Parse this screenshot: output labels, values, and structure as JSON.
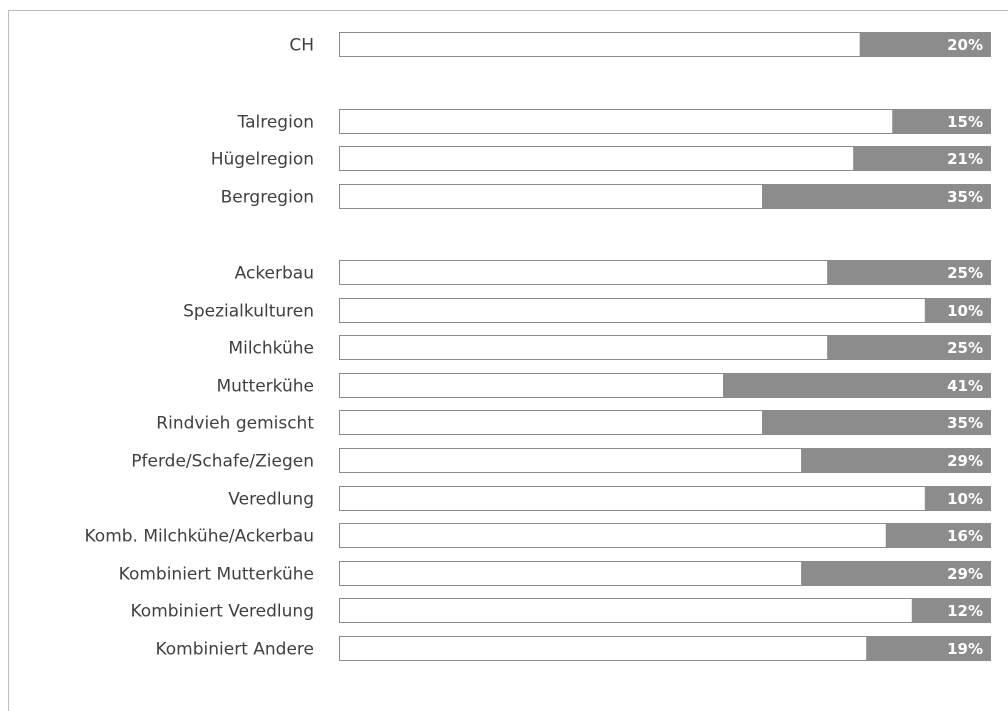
{
  "chart_data": {
    "type": "bar",
    "orientation": "horizontal",
    "stacked": true,
    "categories": [
      "CH",
      "Talregion",
      "Hügelregion",
      "Bergregion",
      "Ackerbau",
      "Spezialkulturen",
      "Milchkühe",
      "Mutterkühe",
      "Rindvieh gemischt",
      "Pferde/Schafe/Ziegen",
      "Veredlung",
      "Komb. Milchkühe/Ackerbau",
      "Kombiniert Mutterkühe",
      "Kombiniert Veredlung",
      "Kombiniert Andere"
    ],
    "groups": [
      [
        0
      ],
      [
        1,
        2,
        3
      ],
      [
        4,
        5,
        6,
        7,
        8,
        9,
        10,
        11,
        12,
        13,
        14
      ]
    ],
    "values": [
      20,
      15,
      21,
      35,
      25,
      10,
      25,
      41,
      35,
      29,
      10,
      16,
      29,
      12,
      19
    ],
    "value_labels": [
      "20%",
      "15%",
      "21%",
      "35%",
      "25%",
      "10%",
      "25%",
      "41%",
      "35%",
      "29%",
      "10%",
      "16%",
      "29%",
      "12%",
      "19%"
    ],
    "unit": "%",
    "xlim": [
      0,
      100
    ],
    "title": "",
    "xlabel": "",
    "ylabel": "",
    "grid": false,
    "legend": "none",
    "colors": {
      "value_fill": "#8c8c8c",
      "remainder_fill": "#ffffff",
      "bar_outline": "#8c8c8c",
      "label_text": "#404040",
      "value_text": "#ffffff",
      "frame": "#bfbfbf"
    }
  }
}
